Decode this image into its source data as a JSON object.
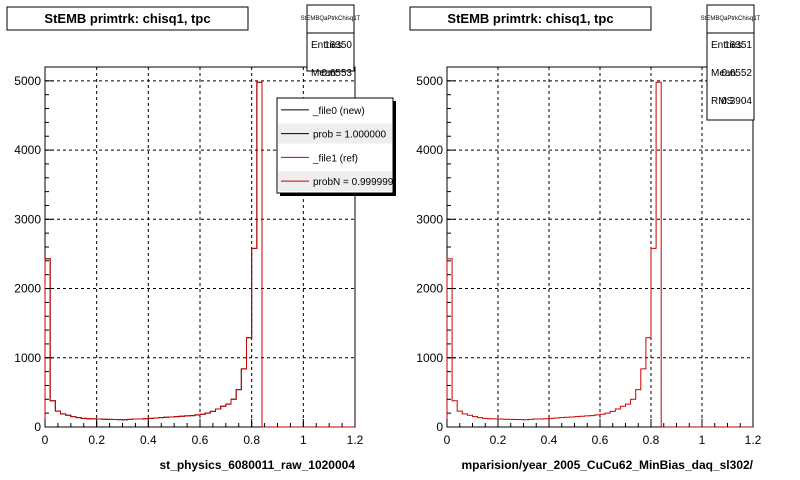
{
  "chart_data": [
    {
      "type": "histogram",
      "title": "StEMB primtrk: chisq1, tpc",
      "stats": {
        "name": "StEMBQaPtrkChisq1T",
        "rows": [
          {
            "label": "Entries",
            "value": "16350"
          },
          {
            "label": "Mean",
            "value": "0.6553"
          }
        ]
      },
      "legend": {
        "entries": [
          {
            "label": "_file0 (new)",
            "color": "#000000"
          },
          {
            "label": "prob = 1.000000",
            "color": "#000000"
          },
          {
            "label": "_file1 (ref)",
            "color": "#cc0000"
          },
          {
            "label": "probN = 0.999999",
            "color": "#cc0000"
          }
        ]
      },
      "xlim": [
        0,
        1.2
      ],
      "ylim": [
        0,
        5200
      ],
      "xticks": [
        "0",
        "0.2",
        "0.4",
        "0.6",
        "0.8",
        "1",
        "1.2"
      ],
      "yticks": [
        "0",
        "1000",
        "2000",
        "3000",
        "4000",
        "5000"
      ],
      "xlabel": "st_physics_6080011_raw_1020004",
      "grid": true,
      "bin_width": 0.02,
      "series": [
        {
          "color": "#000000",
          "values": [
            2430,
            380,
            230,
            190,
            170,
            150,
            135,
            125,
            120,
            118,
            115,
            112,
            110,
            108,
            106,
            105,
            110,
            115,
            115,
            120,
            125,
            130,
            135,
            140,
            145,
            150,
            155,
            160,
            165,
            175,
            185,
            200,
            225,
            260,
            300,
            330,
            400,
            540,
            840,
            1290,
            2580,
            4980,
            0,
            0,
            0,
            0,
            0,
            0,
            0,
            0,
            0,
            0,
            0,
            0,
            0,
            0,
            0,
            0,
            0,
            0
          ]
        },
        {
          "color": "#cc0000",
          "values": [
            2430,
            380,
            230,
            190,
            170,
            150,
            135,
            125,
            120,
            118,
            115,
            112,
            110,
            108,
            106,
            105,
            110,
            115,
            115,
            120,
            125,
            130,
            135,
            140,
            145,
            150,
            155,
            160,
            165,
            175,
            185,
            200,
            225,
            260,
            300,
            330,
            400,
            540,
            840,
            1290,
            2580,
            4980,
            0,
            0,
            0,
            0,
            0,
            0,
            0,
            0,
            0,
            0,
            0,
            0,
            0,
            0,
            0,
            0,
            0,
            0
          ]
        }
      ]
    },
    {
      "type": "histogram",
      "title": "StEMB primtrk: chisq1, tpc",
      "stats": {
        "name": "StEMBQaPtrkChisq1T",
        "rows": [
          {
            "label": "Entries",
            "value": "16351"
          },
          {
            "label": "Mean",
            "value": "0.6552"
          },
          {
            "label": "RMS",
            "value": "0.3904"
          }
        ]
      },
      "xlim": [
        0,
        1.2
      ],
      "ylim": [
        0,
        5200
      ],
      "xticks": [
        "0",
        "0.2",
        "0.4",
        "0.6",
        "0.8",
        "1",
        "1.2"
      ],
      "yticks": [
        "0",
        "1000",
        "2000",
        "3000",
        "4000",
        "5000"
      ],
      "xlabel": "mparision/year_2005_CuCu62_MinBias_daq_sl302/",
      "grid": true,
      "bin_width": 0.02,
      "series": [
        {
          "color": "#cc0000",
          "values": [
            2430,
            380,
            230,
            190,
            170,
            150,
            135,
            125,
            120,
            118,
            115,
            112,
            110,
            108,
            106,
            105,
            110,
            115,
            115,
            120,
            125,
            130,
            135,
            140,
            145,
            150,
            155,
            160,
            165,
            175,
            185,
            200,
            225,
            260,
            300,
            330,
            400,
            540,
            840,
            1290,
            2580,
            4980,
            0,
            0,
            0,
            0,
            0,
            0,
            0,
            0,
            0,
            0,
            0,
            0,
            0,
            0,
            0,
            0,
            0,
            0
          ]
        }
      ]
    }
  ]
}
